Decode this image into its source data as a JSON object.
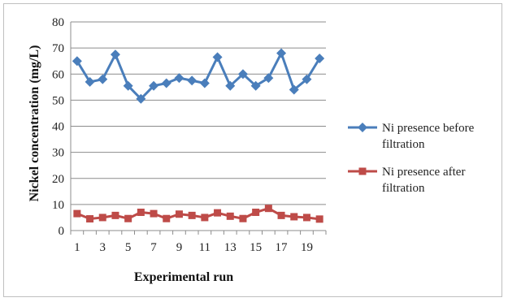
{
  "chart_data": {
    "type": "line",
    "xlabel": "Experimental run",
    "ylabel": "Nickel concentration (mg/L)",
    "x": [
      1,
      2,
      3,
      4,
      5,
      6,
      7,
      8,
      9,
      10,
      11,
      12,
      13,
      14,
      15,
      16,
      17,
      18,
      19,
      20
    ],
    "x_tick_labels": [
      "1",
      "3",
      "5",
      "7",
      "9",
      "11",
      "13",
      "15",
      "17",
      "19"
    ],
    "x_tick_values": [
      1,
      3,
      5,
      7,
      9,
      11,
      13,
      15,
      17,
      19
    ],
    "xlim": [
      0.5,
      20.5
    ],
    "ylim": [
      0,
      80
    ],
    "y_ticks": [
      0,
      10,
      20,
      30,
      40,
      50,
      60,
      70,
      80
    ],
    "grid": "horizontal",
    "legend_position": "right",
    "series": [
      {
        "name": "Ni presence before filtration",
        "legend_lines": [
          "Ni presence before",
          "filtration"
        ],
        "color": "#4a7ebb",
        "marker": "diamond",
        "values": [
          65,
          57,
          58,
          67.5,
          55.5,
          50.5,
          55.5,
          56.5,
          58.5,
          57.5,
          56.5,
          66.5,
          55.5,
          60,
          55.5,
          58.5,
          68,
          54,
          58,
          66
        ]
      },
      {
        "name": "Ni presence after filtration",
        "legend_lines": [
          "Ni presence after",
          "filtration"
        ],
        "color": "#be4b48",
        "marker": "square",
        "values": [
          6.5,
          4.5,
          5,
          5.8,
          4.6,
          7,
          6.5,
          4.6,
          6.3,
          5.8,
          5,
          6.8,
          5.5,
          4.6,
          7,
          8.5,
          5.8,
          5.3,
          5,
          4.4
        ]
      }
    ]
  }
}
